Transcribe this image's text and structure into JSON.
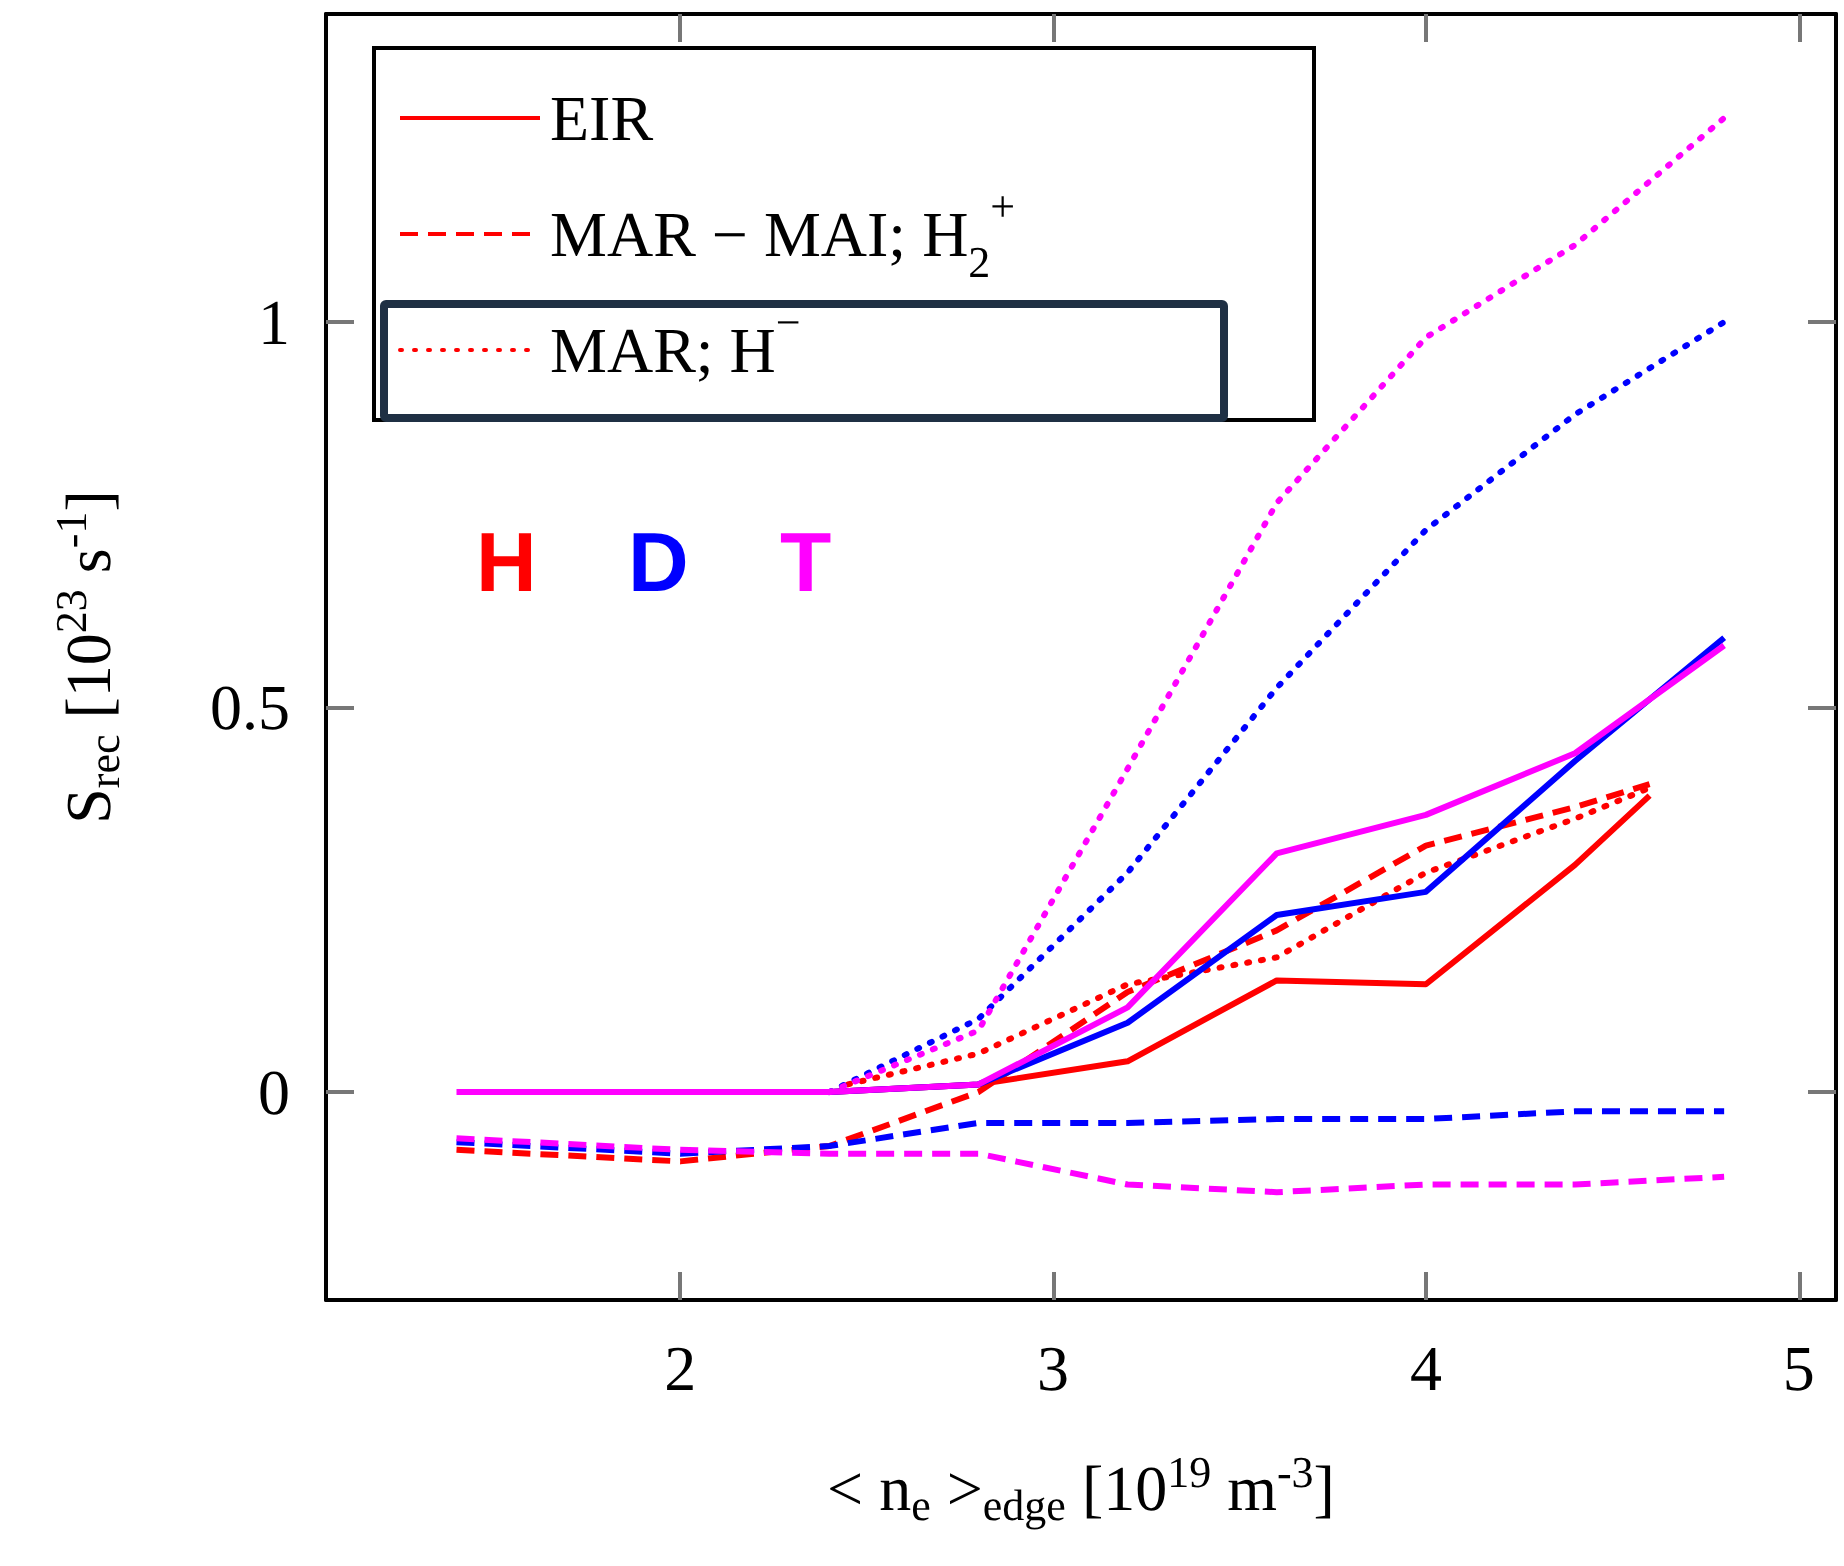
{
  "chart_data": {
    "type": "line",
    "xlabel": "< n$_{e}$ >$_{edge}$ [10$^{19}$ m$^{-3}$]",
    "ylabel": "S$_{rec}$ [10$^{23}$ s$^{-1}$]",
    "xlim": [
      1.05,
      5.1
    ],
    "xticks": [
      2,
      3,
      4,
      5
    ],
    "ylim": [
      -0.27,
      1.4
    ],
    "yticks": [
      0,
      0.5,
      1
    ],
    "grid": false,
    "legend": "top left",
    "marker": "none",
    "annotations": [
      "H",
      "D",
      "T"
    ],
    "series": [
      {
        "name": "EIR",
        "color": "#ff0000",
        "line_style": "solid",
        "x": [
          2.4,
          2.8,
          3.2,
          3.6,
          4.0,
          4.4,
          4.6
        ],
        "values": [
          0,
          0.01,
          0.04,
          0.145,
          0.14,
          0.295,
          0.385
        ]
      },
      {
        "name": "MAR − MAI; H$_{2}$$^{+}$",
        "color": "#ff0000",
        "line_style": "dashed",
        "x": [
          1.4,
          2.0,
          2.4,
          2.8,
          3.2,
          3.6,
          4.0,
          4.4,
          4.6
        ],
        "values": [
          -0.075,
          -0.09,
          -0.07,
          0.0,
          0.13,
          0.21,
          0.32,
          0.37,
          0.4
        ]
      },
      {
        "name": "MAR; H$^{−}$",
        "color": "#ff0000",
        "line_style": "dotted",
        "x": [
          2.45,
          2.8,
          3.2,
          3.6,
          4.0,
          4.4,
          4.6
        ],
        "values": [
          0.01,
          0.05,
          0.14,
          0.175,
          0.285,
          0.355,
          0.395
        ]
      },
      {
        "color": "#0000ff",
        "line_style": "solid",
        "x": [
          2.4,
          2.8,
          3.2,
          3.6,
          4.0,
          4.4,
          4.8
        ],
        "values": [
          0,
          0.01,
          0.09,
          0.23,
          0.26,
          0.43,
          0.59
        ]
      },
      {
        "color": "#0000ff",
        "line_style": "dashed",
        "x": [
          1.4,
          2.0,
          2.4,
          2.8,
          3.2,
          3.6,
          4.0,
          4.4,
          4.8
        ],
        "values": [
          -0.065,
          -0.08,
          -0.07,
          -0.04,
          -0.04,
          -0.035,
          -0.035,
          -0.025,
          -0.025
        ]
      },
      {
        "color": "#0000ff",
        "line_style": "dotted",
        "x": [
          2.4,
          2.8,
          3.2,
          3.6,
          4.0,
          4.4,
          4.8
        ],
        "values": [
          0,
          0.095,
          0.285,
          0.525,
          0.73,
          0.88,
          1.0
        ]
      },
      {
        "color": "#ff00ff",
        "line_style": "solid",
        "x": [
          1.4,
          2.0,
          2.4,
          2.8,
          3.2,
          3.6,
          4.0,
          4.4,
          4.8
        ],
        "values": [
          0,
          0,
          0,
          0.01,
          0.11,
          0.31,
          0.36,
          0.44,
          0.58
        ]
      },
      {
        "color": "#ff00ff",
        "line_style": "dashed",
        "x": [
          1.4,
          2.0,
          2.4,
          2.8,
          3.2,
          3.6,
          4.0,
          4.4,
          4.8
        ],
        "values": [
          -0.06,
          -0.075,
          -0.08,
          -0.08,
          -0.12,
          -0.13,
          -0.12,
          -0.12,
          -0.11
        ]
      },
      {
        "color": "#ff00ff",
        "line_style": "dotted",
        "x": [
          2.4,
          2.8,
          3.2,
          3.6,
          4.0,
          4.4,
          4.8
        ],
        "values": [
          0,
          0.08,
          0.42,
          0.765,
          0.98,
          1.1,
          1.265
        ]
      }
    ]
  }
}
